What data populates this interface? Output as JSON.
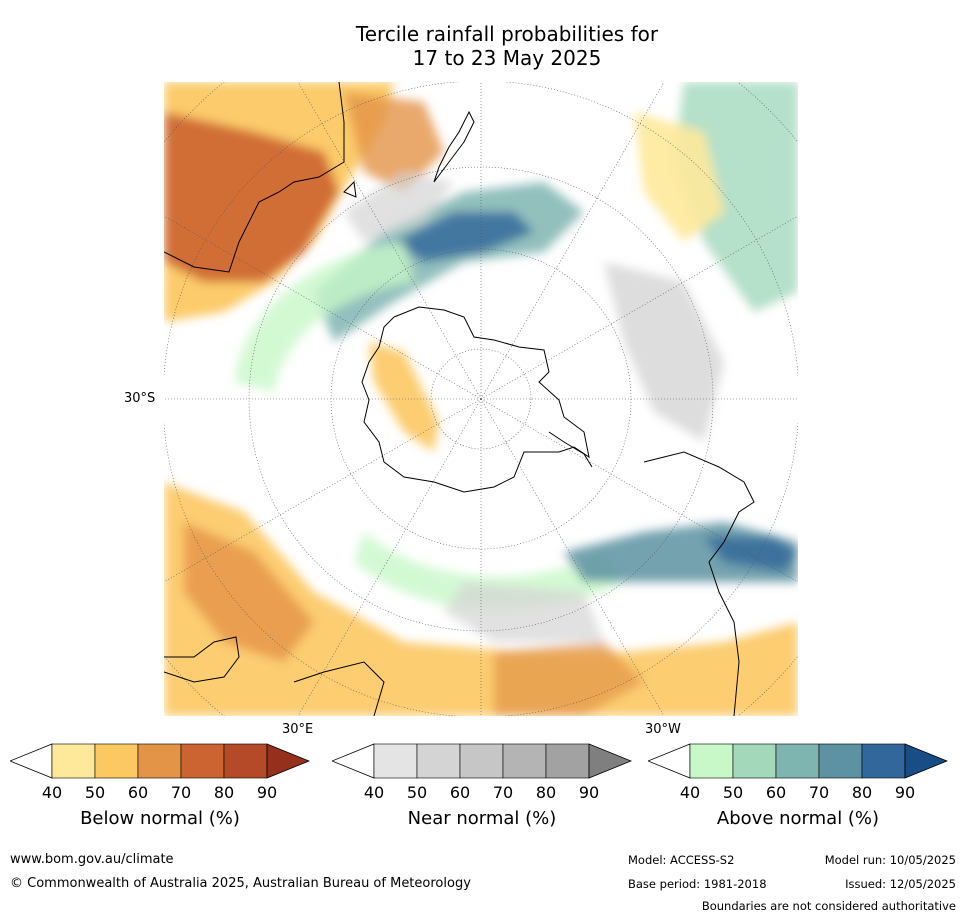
{
  "title": {
    "line1": "Tercile rainfall probabilities for",
    "line2": "17 to 23 May 2025"
  },
  "map": {
    "projection": "south-polar-stereographic",
    "lat_label": "30°S",
    "lon_labels": [
      "30°E",
      "30°W"
    ]
  },
  "legends": [
    {
      "label": "Below normal (%)",
      "ticks": [
        "40",
        "50",
        "60",
        "70",
        "80",
        "90"
      ],
      "colors": [
        "#ffffff",
        "#fee99a",
        "#fcc862",
        "#e39447",
        "#cc6432",
        "#b44a27",
        "#94301b"
      ]
    },
    {
      "label": "Near normal (%)",
      "ticks": [
        "40",
        "50",
        "60",
        "70",
        "80",
        "90"
      ],
      "colors": [
        "#ffffff",
        "#e4e4e4",
        "#d4d4d4",
        "#c6c6c6",
        "#b4b4b4",
        "#a2a2a2",
        "#7f7f7f"
      ]
    },
    {
      "label": "Above normal (%)",
      "ticks": [
        "40",
        "50",
        "60",
        "70",
        "80",
        "90"
      ],
      "colors": [
        "#ffffff",
        "#c8f7c8",
        "#a3d8bb",
        "#7fb5b1",
        "#5c92a1",
        "#31679a",
        "#184e85"
      ]
    }
  ],
  "footer": {
    "website": "www.bom.gov.au/climate",
    "copyright": "© Commonwealth of Australia 2025, Australian Bureau of Meteorology",
    "model": "Model: ACCESS-S2",
    "base_period": "Base period: 1981-2018",
    "model_run": "Model run: 10/05/2025",
    "issued": "Issued: 12/05/2025",
    "boundaries_note": "Boundaries are not considered authoritative"
  }
}
